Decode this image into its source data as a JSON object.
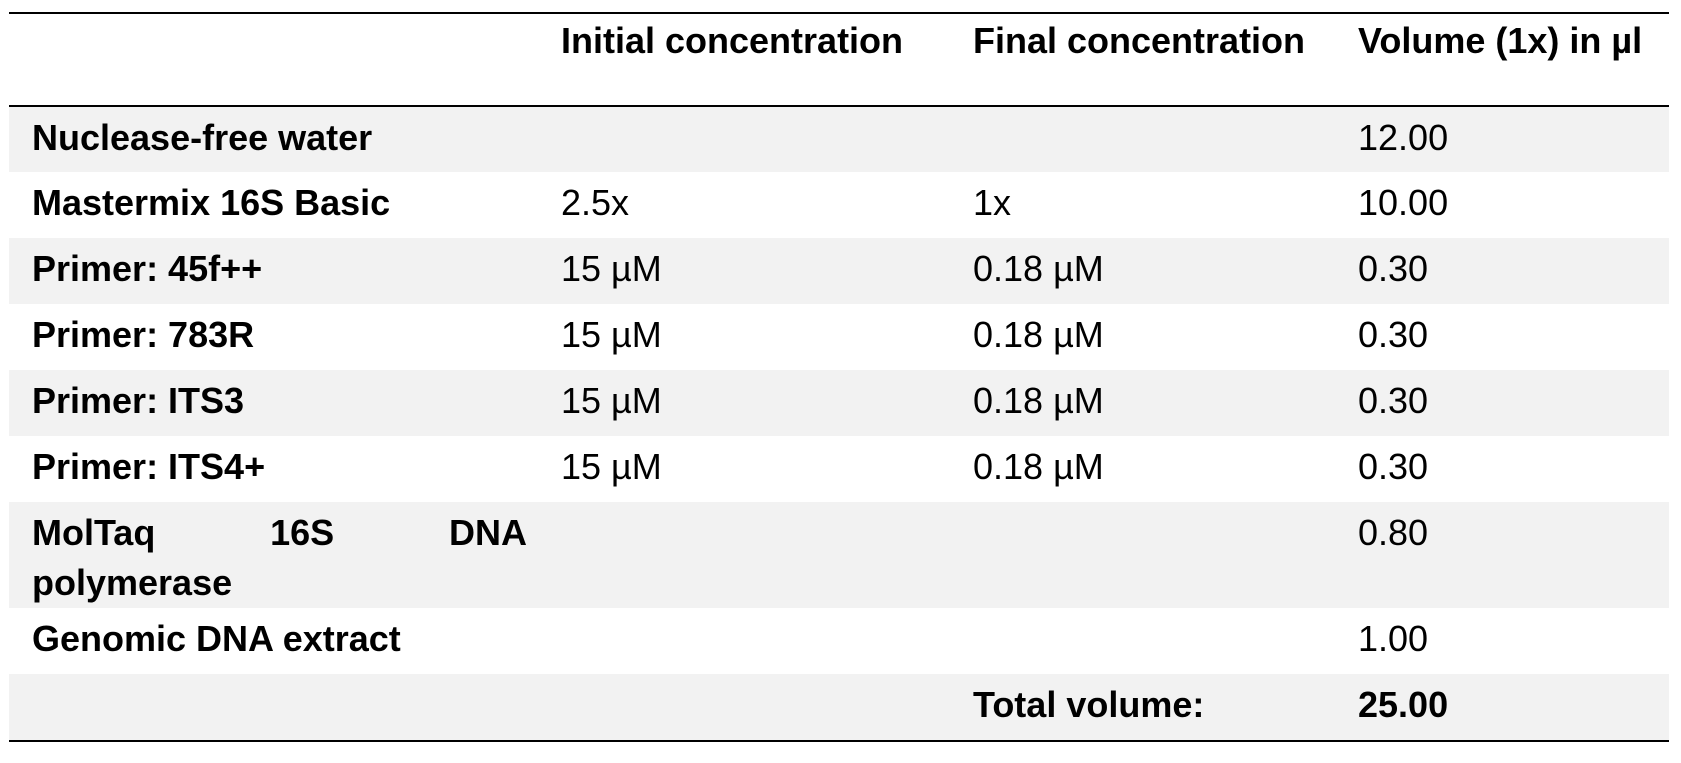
{
  "table": {
    "headers": [
      "",
      "Initial concentration",
      "Final concentration",
      "Volume (1x) in µl"
    ],
    "rows": [
      {
        "component": "Nuclease-free water",
        "initial": "",
        "final": "",
        "volume": "12.00"
      },
      {
        "component": "Mastermix 16S Basic",
        "initial": "2.5x",
        "final": "1x",
        "volume": "10.00"
      },
      {
        "component": "Primer: 45f++",
        "initial": "15 µM",
        "final": "0.18 µM",
        "volume": "0.30"
      },
      {
        "component": "Primer: 783R",
        "initial": "15 µM",
        "final": "0.18 µM",
        "volume": "0.30"
      },
      {
        "component": "Primer: ITS3",
        "initial": "15 µM",
        "final": "0.18 µM",
        "volume": "0.30"
      },
      {
        "component": "Primer: ITS4+",
        "initial": "15 µM",
        "final": "0.18 µM",
        "volume": "0.30"
      },
      {
        "component": "MolTaq 16S DNA polymerase",
        "component_line1": [
          "MolTaq",
          "16S",
          "DNA"
        ],
        "component_line2": "polymerase",
        "initial": "",
        "final": "",
        "volume": "0.80"
      },
      {
        "component": "Genomic DNA extract",
        "initial": "",
        "final": "",
        "volume": "1.00"
      }
    ],
    "total": {
      "label": "Total volume:",
      "value": "25.00"
    }
  },
  "colors": {
    "shade": "#f2f2f2",
    "rule": "#000000",
    "text": "#000000"
  }
}
